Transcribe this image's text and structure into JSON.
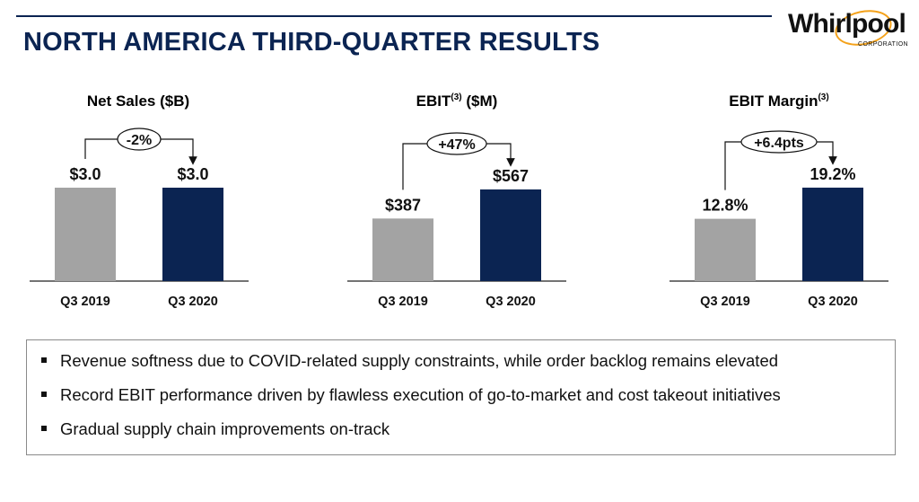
{
  "header": {
    "title": "NORTH AMERICA THIRD-QUARTER RESULTS",
    "logo_text": "Whirlpool",
    "logo_subtext": "CORPORATION"
  },
  "chart_data": [
    {
      "type": "bar",
      "title": "Net Sales ($B)",
      "categories": [
        "Q3 2019",
        "Q3 2020"
      ],
      "values": [
        3.0,
        3.0
      ],
      "labels": [
        "$3.0",
        "$3.0"
      ],
      "change": "-2%",
      "colors": [
        "#a3a3a3",
        "#0b2452"
      ]
    },
    {
      "type": "bar",
      "title": "EBIT",
      "title_sup": "(3)",
      "title_suffix": " ($M)",
      "categories": [
        "Q3 2019",
        "Q3 2020"
      ],
      "values": [
        387,
        567
      ],
      "labels": [
        "$387",
        "$567"
      ],
      "change": "+47%",
      "colors": [
        "#a3a3a3",
        "#0b2452"
      ]
    },
    {
      "type": "bar",
      "title": "EBIT Margin",
      "title_sup": "(3)",
      "categories": [
        "Q3 2019",
        "Q3 2020"
      ],
      "values": [
        12.8,
        19.2
      ],
      "labels": [
        "12.8%",
        "19.2%"
      ],
      "change": "+6.4pts",
      "colors": [
        "#a3a3a3",
        "#0b2452"
      ]
    }
  ],
  "bullets": [
    "Revenue softness due to COVID-related supply constraints, while order backlog remains elevated",
    "Record EBIT performance driven by flawless execution of go-to-market and cost takeout initiatives",
    "Gradual supply chain improvements on-track"
  ]
}
